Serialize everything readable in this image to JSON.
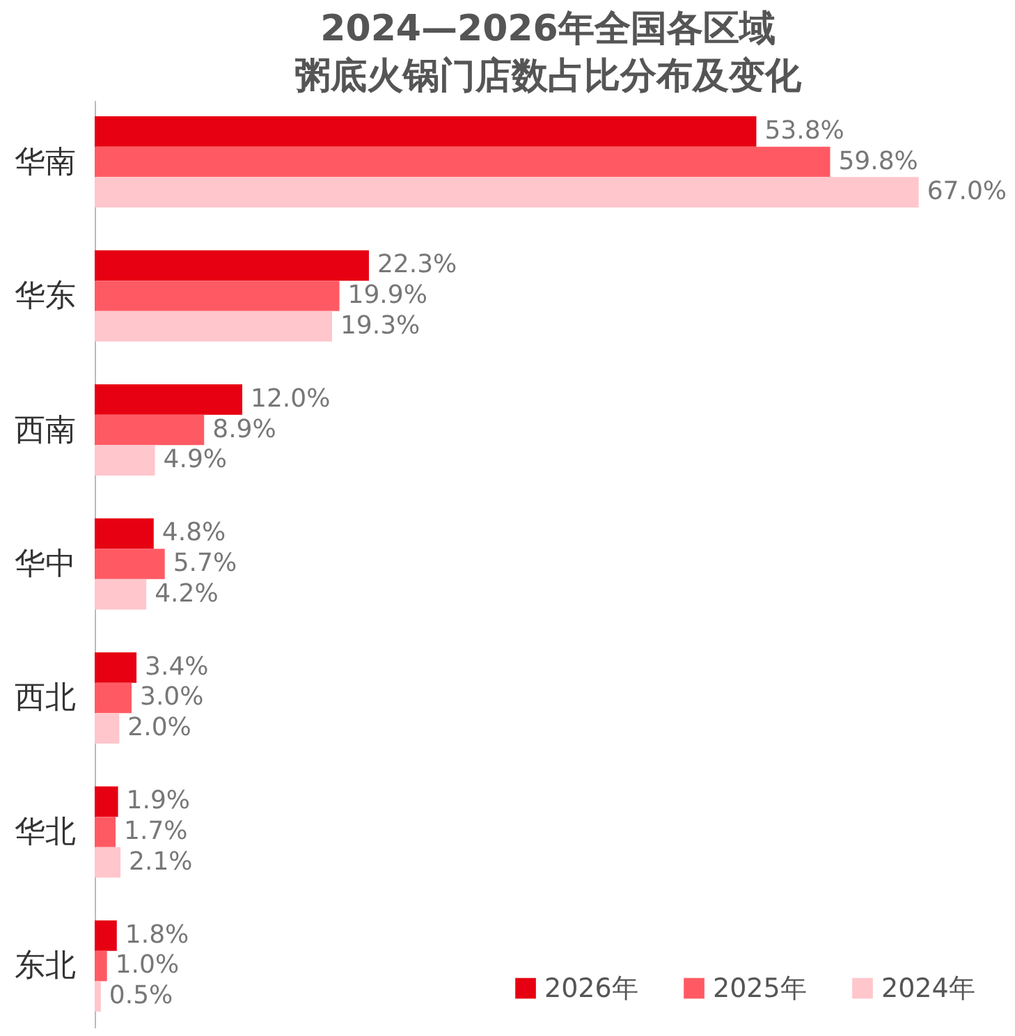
{
  "chart_data": {
    "type": "bar",
    "orientation": "horizontal",
    "title": "2024—2026年全国各区域粥底火锅门店数占比分布及变化",
    "categories": [
      "华南",
      "华东",
      "西南",
      "华中",
      "西北",
      "华北",
      "东北"
    ],
    "legend": "bottom right",
    "series": [
      {
        "name": "2026年",
        "color": "#e60012",
        "values": [
          53.8,
          22.3,
          12.0,
          4.8,
          3.4,
          1.9,
          1.8
        ],
        "value_labels": [
          "53.8%",
          "22.3%",
          "12.0%",
          "4.8%",
          "3.4%",
          "1.9%",
          "1.8%"
        ]
      },
      {
        "name": "2025年",
        "color": "#ff5a64",
        "values": [
          59.8,
          19.9,
          8.9,
          5.7,
          3.0,
          1.7,
          1.0
        ],
        "value_labels": [
          "59.8%",
          "19.9%",
          "8.9%",
          "5.7%",
          "3.0%",
          "1.7%",
          "1.0%"
        ]
      },
      {
        "name": "2024年",
        "color": "#ffc6cc",
        "values": [
          67.0,
          19.3,
          4.9,
          4.2,
          2.0,
          2.1,
          0.5
        ],
        "value_labels": [
          "67.0%",
          "19.3%",
          "4.9%",
          "4.2%",
          "2.0%",
          "2.1%",
          "0.5%"
        ]
      }
    ]
  }
}
